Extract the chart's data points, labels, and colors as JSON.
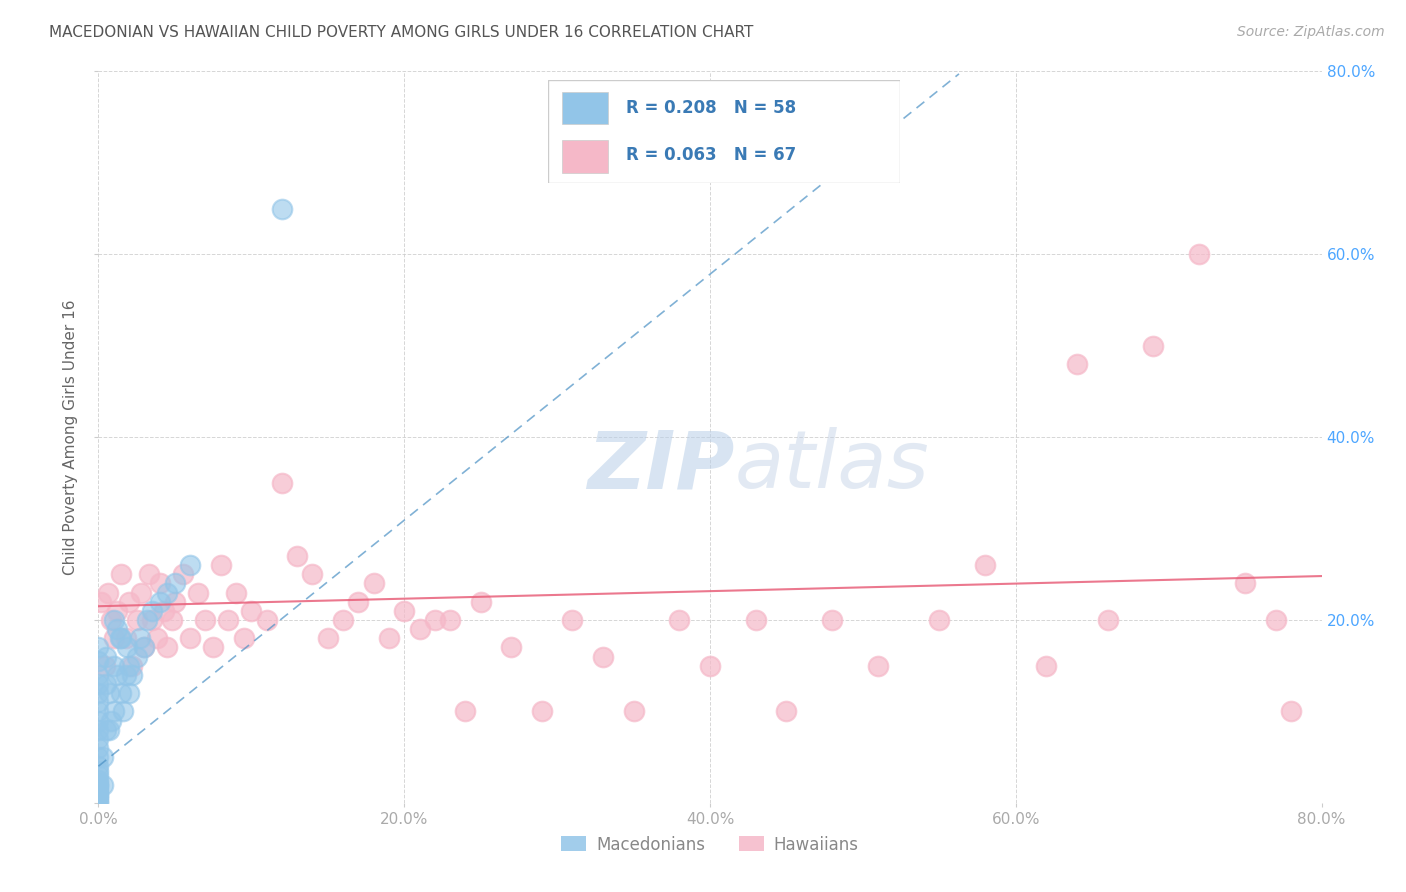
{
  "title": "MACEDONIAN VS HAWAIIAN CHILD POVERTY AMONG GIRLS UNDER 16 CORRELATION CHART",
  "source": "Source: ZipAtlas.com",
  "ylabel": "Child Poverty Among Girls Under 16",
  "xlim": [
    0.0,
    0.8
  ],
  "ylim": [
    0.0,
    0.8
  ],
  "xtick_vals": [
    0.0,
    0.2,
    0.4,
    0.6,
    0.8
  ],
  "ytick_vals": [
    0.0,
    0.2,
    0.4,
    0.6,
    0.8
  ],
  "right_ytick_vals": [
    0.2,
    0.4,
    0.6,
    0.8
  ],
  "macedonian_R": 0.208,
  "macedonian_N": 58,
  "hawaiian_R": 0.063,
  "hawaiian_N": 67,
  "macedonian_color": "#92c5e8",
  "hawaiian_color": "#f5b8c8",
  "macedonian_line_color": "#4a90c4",
  "hawaiian_line_color": "#e8607a",
  "bg_color": "#ffffff",
  "grid_color": "#cccccc",
  "title_color": "#555555",
  "watermark_zip_color": "#ccd9ee",
  "watermark_atlas_color": "#c8d5e8",
  "legend_text_color": "#3a7ab5",
  "right_axis_color": "#4da6ff",
  "macedonians_x": [
    0.0,
    0.0,
    0.0,
    0.0,
    0.0,
    0.0,
    0.0,
    0.0,
    0.0,
    0.0,
    0.0,
    0.0,
    0.0,
    0.0,
    0.0,
    0.0,
    0.0,
    0.0,
    0.0,
    0.0,
    0.0,
    0.0,
    0.0,
    0.0,
    0.0,
    0.0,
    0.003,
    0.003,
    0.005,
    0.005,
    0.005,
    0.007,
    0.007,
    0.008,
    0.01,
    0.01,
    0.01,
    0.012,
    0.012,
    0.014,
    0.015,
    0.015,
    0.016,
    0.018,
    0.019,
    0.02,
    0.02,
    0.022,
    0.025,
    0.027,
    0.03,
    0.032,
    0.035,
    0.04,
    0.045,
    0.05,
    0.06,
    0.12
  ],
  "macedonians_y": [
    0.0,
    0.002,
    0.005,
    0.007,
    0.01,
    0.012,
    0.015,
    0.018,
    0.02,
    0.022,
    0.025,
    0.03,
    0.035,
    0.04,
    0.05,
    0.06,
    0.07,
    0.08,
    0.09,
    0.1,
    0.11,
    0.12,
    0.13,
    0.14,
    0.155,
    0.17,
    0.02,
    0.05,
    0.08,
    0.13,
    0.16,
    0.08,
    0.12,
    0.09,
    0.1,
    0.15,
    0.2,
    0.14,
    0.19,
    0.18,
    0.12,
    0.18,
    0.1,
    0.14,
    0.17,
    0.12,
    0.15,
    0.14,
    0.16,
    0.18,
    0.17,
    0.2,
    0.21,
    0.22,
    0.23,
    0.24,
    0.26,
    0.65
  ],
  "hawaiians_x": [
    0.002,
    0.004,
    0.006,
    0.008,
    0.01,
    0.012,
    0.015,
    0.018,
    0.02,
    0.022,
    0.025,
    0.028,
    0.03,
    0.033,
    0.035,
    0.038,
    0.04,
    0.043,
    0.045,
    0.048,
    0.05,
    0.055,
    0.06,
    0.065,
    0.07,
    0.075,
    0.08,
    0.085,
    0.09,
    0.095,
    0.1,
    0.11,
    0.12,
    0.13,
    0.14,
    0.15,
    0.16,
    0.17,
    0.18,
    0.19,
    0.2,
    0.21,
    0.22,
    0.23,
    0.24,
    0.25,
    0.27,
    0.29,
    0.31,
    0.33,
    0.35,
    0.38,
    0.4,
    0.43,
    0.45,
    0.48,
    0.51,
    0.55,
    0.58,
    0.62,
    0.64,
    0.66,
    0.69,
    0.72,
    0.75,
    0.77,
    0.78
  ],
  "hawaiians_y": [
    0.22,
    0.15,
    0.23,
    0.2,
    0.18,
    0.21,
    0.25,
    0.18,
    0.22,
    0.15,
    0.2,
    0.23,
    0.17,
    0.25,
    0.2,
    0.18,
    0.24,
    0.21,
    0.17,
    0.2,
    0.22,
    0.25,
    0.18,
    0.23,
    0.2,
    0.17,
    0.26,
    0.2,
    0.23,
    0.18,
    0.21,
    0.2,
    0.35,
    0.27,
    0.25,
    0.18,
    0.2,
    0.22,
    0.24,
    0.18,
    0.21,
    0.19,
    0.2,
    0.2,
    0.1,
    0.22,
    0.17,
    0.1,
    0.2,
    0.16,
    0.1,
    0.2,
    0.15,
    0.2,
    0.1,
    0.2,
    0.15,
    0.2,
    0.26,
    0.15,
    0.48,
    0.2,
    0.5,
    0.6,
    0.24,
    0.2,
    0.1
  ],
  "mac_line_x0": 0.0,
  "mac_line_y0": 0.04,
  "mac_line_x1": 0.55,
  "mac_line_y1": 0.78,
  "haw_line_x0": 0.0,
  "haw_line_y0": 0.215,
  "haw_line_x1": 0.8,
  "haw_line_y1": 0.248
}
